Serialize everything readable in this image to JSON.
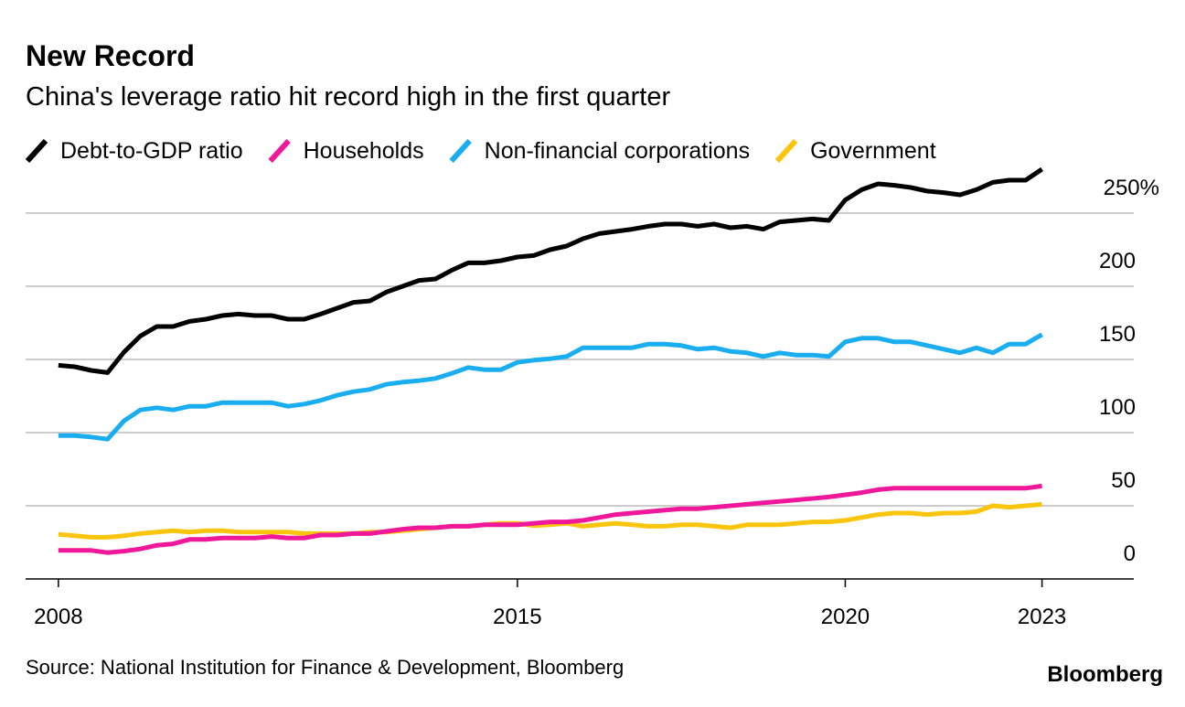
{
  "chart_data": {
    "type": "line",
    "title": "New Record",
    "subtitle": "China's leverage ratio hit record high in the first quarter",
    "source": "Source: National Institution for Finance & Development, Bloomberg",
    "brand": "Bloomberg",
    "x": [
      2008,
      2008.25,
      2008.5,
      2008.75,
      2009,
      2009.25,
      2009.5,
      2009.75,
      2010,
      2010.25,
      2010.5,
      2010.75,
      2011,
      2011.25,
      2011.5,
      2011.75,
      2012,
      2012.25,
      2012.5,
      2012.75,
      2013,
      2013.25,
      2013.5,
      2013.75,
      2014,
      2014.25,
      2014.5,
      2014.75,
      2015,
      2015.25,
      2015.5,
      2015.75,
      2016,
      2016.25,
      2016.5,
      2016.75,
      2017,
      2017.25,
      2017.5,
      2017.75,
      2018,
      2018.25,
      2018.5,
      2018.75,
      2019,
      2019.25,
      2019.5,
      2019.75,
      2020,
      2020.25,
      2020.5,
      2020.75,
      2021,
      2021.25,
      2021.5,
      2021.75,
      2022,
      2022.25,
      2022.5,
      2022.75,
      2023
    ],
    "series": [
      {
        "name": "Debt-to-GDP ratio",
        "color": "#000000",
        "values": [
          146,
          145,
          142.5,
          141,
          155,
          166,
          172.5,
          172.5,
          176,
          177.5,
          180,
          181,
          180,
          180,
          177.5,
          177.5,
          181,
          185,
          189,
          190,
          196,
          200,
          204,
          205,
          211,
          216,
          216,
          217.5,
          220,
          221,
          225,
          227.5,
          232.5,
          236,
          237.5,
          239,
          241,
          242.5,
          242.5,
          241,
          242.5,
          240,
          241,
          239,
          244,
          245,
          246,
          245,
          259,
          266,
          270,
          269,
          267.5,
          265,
          264,
          262.5,
          266,
          271,
          272.5,
          272.5,
          280
        ]
      },
      {
        "name": "Households",
        "color": "#f0189a",
        "values": [
          19.5,
          19.5,
          19.5,
          18,
          19,
          20.5,
          23,
          24,
          27,
          27,
          28,
          28,
          28,
          29,
          28,
          28,
          30,
          30,
          31,
          31,
          32.5,
          34,
          35,
          35,
          36,
          36,
          37,
          37,
          37,
          38,
          39,
          39,
          40,
          42,
          44,
          45,
          46,
          47,
          48,
          48,
          49,
          50,
          51,
          52,
          53,
          54,
          55,
          56,
          57.5,
          59,
          61,
          62,
          62,
          62,
          62,
          62,
          62,
          62,
          62,
          62,
          63.5
        ]
      },
      {
        "name": "Non-financial corporations",
        "color": "#1aaef0",
        "values": [
          98,
          98,
          97,
          95.5,
          108,
          115.5,
          117,
          115.5,
          118,
          118,
          120.5,
          120.5,
          120.5,
          120.5,
          118,
          119.5,
          122,
          125.5,
          128,
          129.5,
          133,
          134.5,
          135.5,
          137,
          140.5,
          144.5,
          143,
          143,
          148,
          149.5,
          150.5,
          152,
          158,
          158,
          158,
          158,
          160.5,
          160.5,
          159.5,
          157,
          158,
          155.5,
          154.5,
          152,
          154.5,
          153,
          153,
          152,
          162,
          164.5,
          164.5,
          162,
          162,
          159.5,
          157,
          154.5,
          158,
          154.5,
          160.5,
          160.5,
          167
        ]
      },
      {
        "name": "Government",
        "color": "#fcc50d",
        "values": [
          30.5,
          29.5,
          28.5,
          28.5,
          29.5,
          31,
          32,
          33,
          32,
          33,
          33,
          32,
          32,
          32,
          32,
          31,
          31,
          31,
          31,
          32,
          32,
          33,
          34,
          35,
          36,
          36,
          37,
          38,
          38,
          36.5,
          37,
          38,
          36,
          37,
          38,
          37,
          36,
          36,
          37,
          37,
          36,
          35,
          37,
          37,
          37,
          38,
          39,
          39,
          40,
          42,
          44,
          45,
          45,
          44,
          45,
          45,
          46,
          50,
          49,
          50,
          51
        ]
      }
    ],
    "xlim": [
      2007.5,
      2024.4
    ],
    "xticks": [
      2008,
      2015,
      2020,
      2023
    ],
    "ylim": [
      0,
      290
    ],
    "yticks": [
      0,
      50,
      100,
      150,
      200,
      {
        "value": 250,
        "label": "250%"
      }
    ],
    "grid": true
  }
}
